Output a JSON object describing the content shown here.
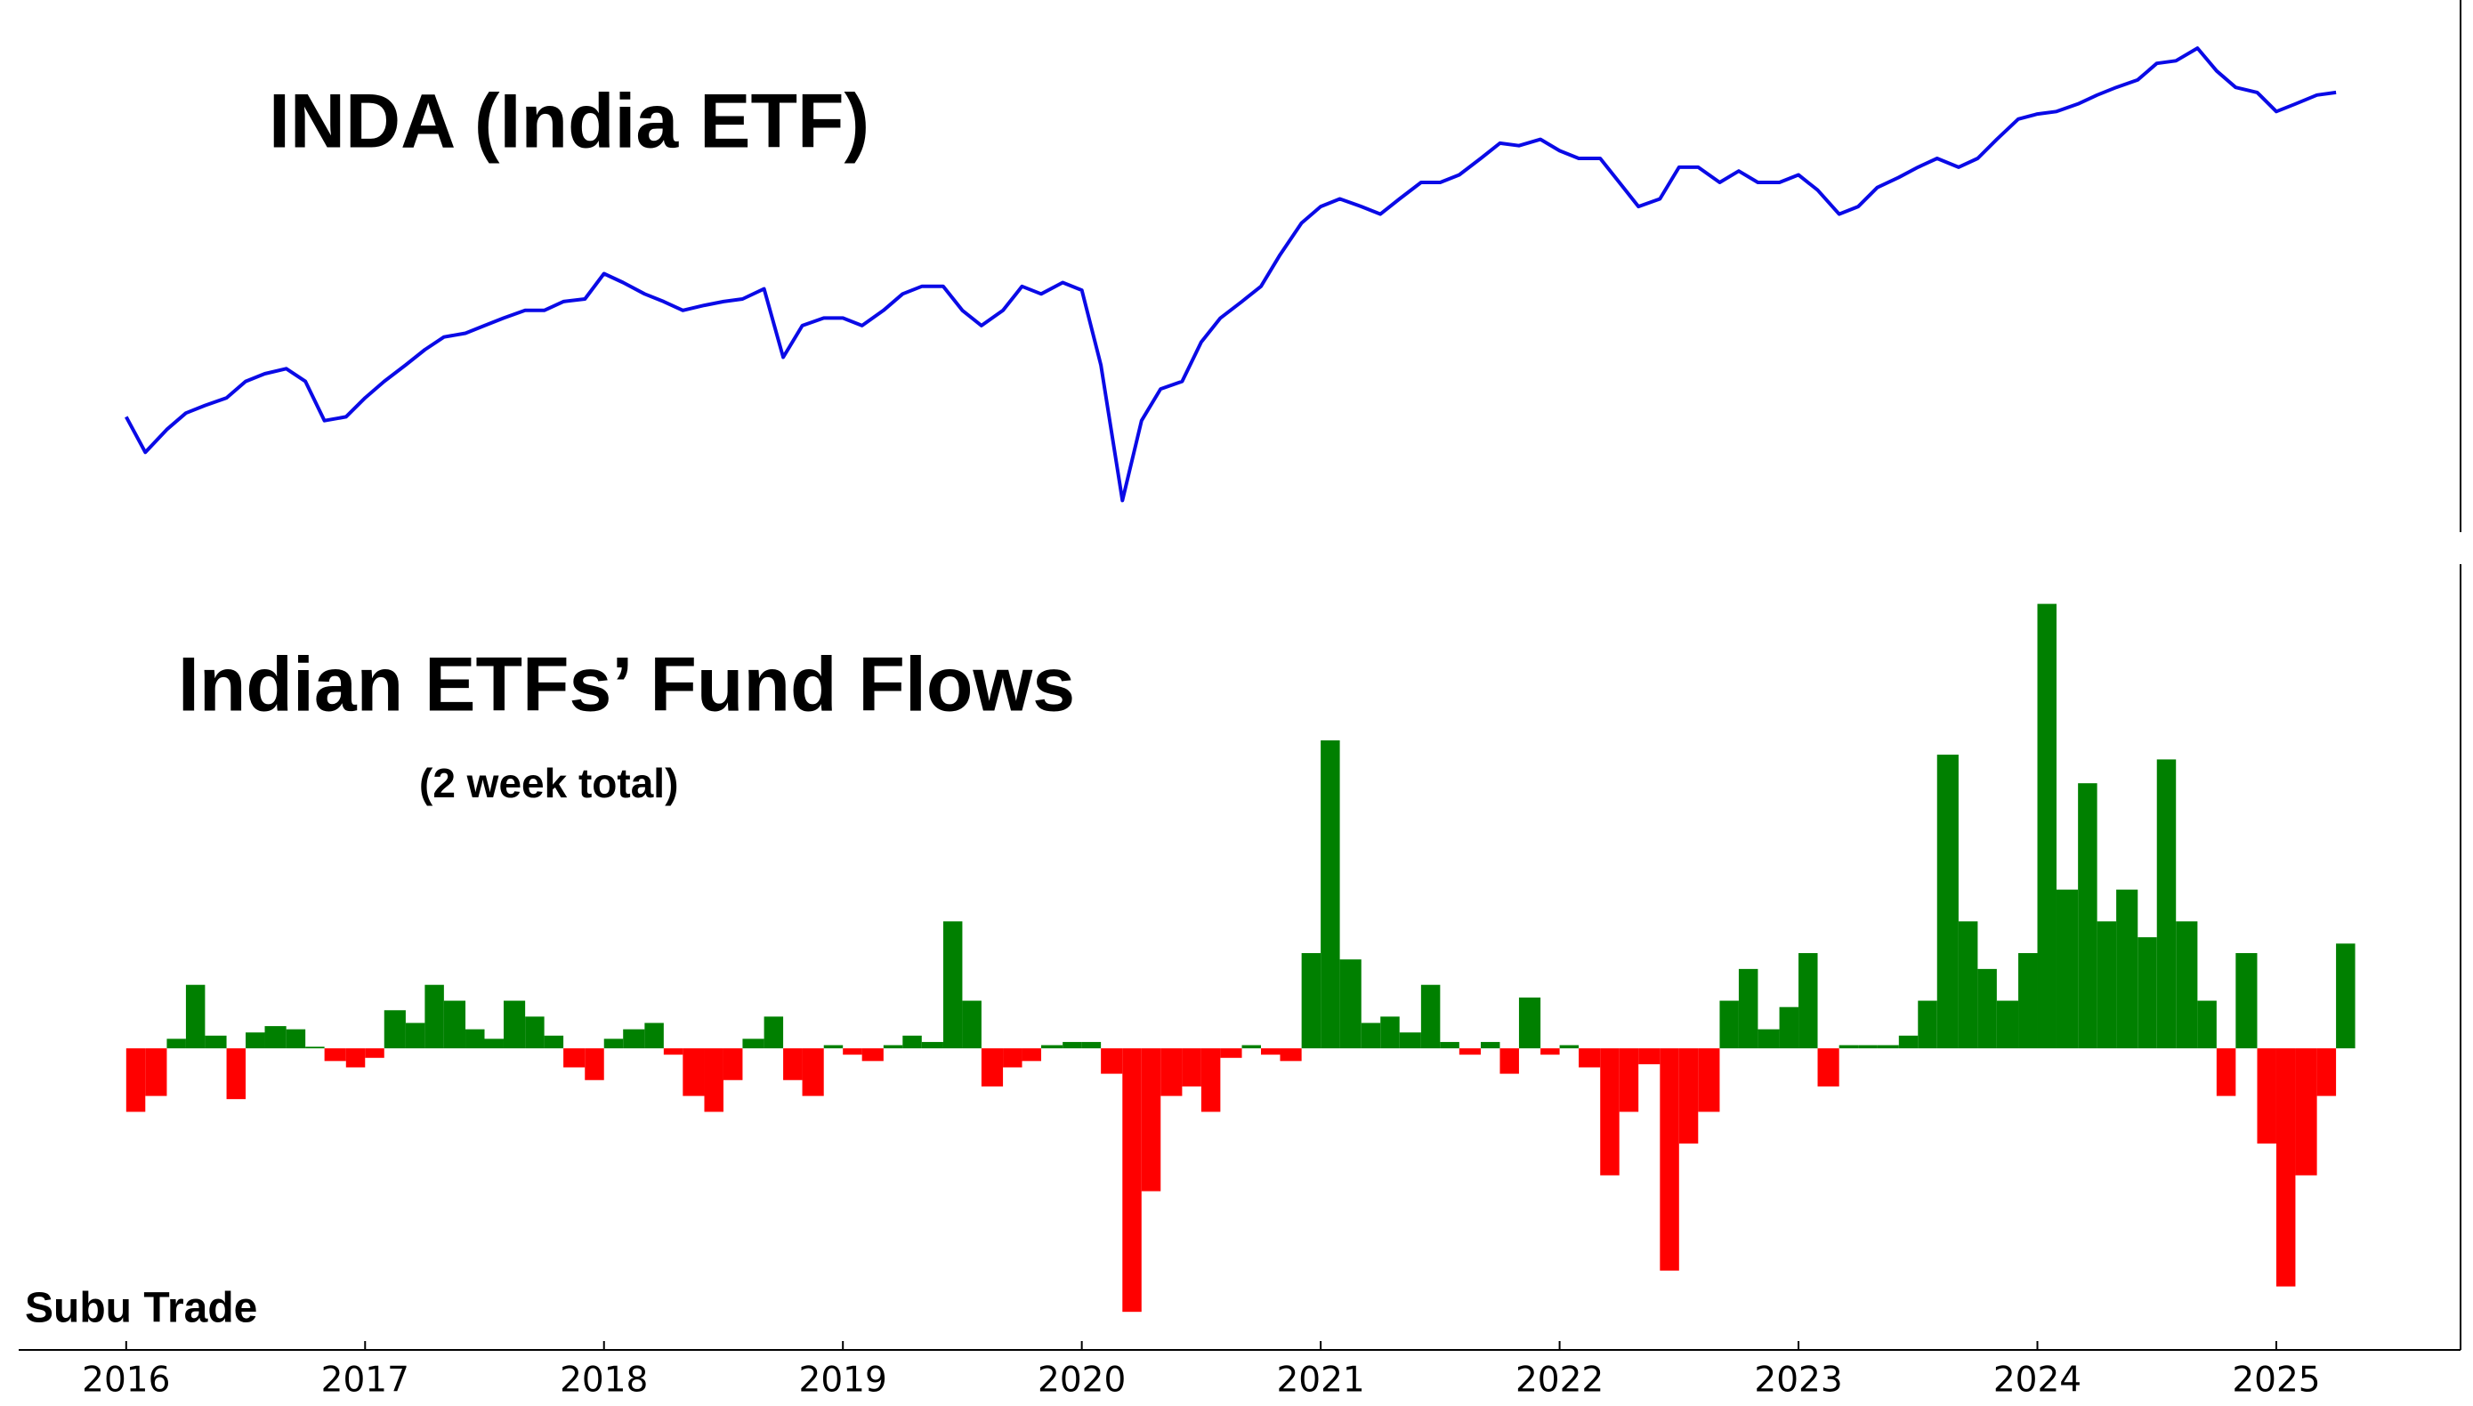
{
  "credit": "Subu Trade",
  "chart_data": [
    {
      "type": "line",
      "title": "INDA (India ETF)",
      "color": "#0a0ae6",
      "xlim": [
        2015.55,
        2025.76
      ],
      "ylim": [
        20.4,
        62.4
      ],
      "x": [
        2016.0,
        2016.08,
        2016.17,
        2016.25,
        2016.33,
        2016.42,
        2016.5,
        2016.58,
        2016.67,
        2016.75,
        2016.83,
        2016.92,
        2017.0,
        2017.08,
        2017.17,
        2017.25,
        2017.33,
        2017.42,
        2017.5,
        2017.58,
        2017.67,
        2017.75,
        2017.83,
        2017.92,
        2018.0,
        2018.08,
        2018.17,
        2018.25,
        2018.33,
        2018.42,
        2018.5,
        2018.58,
        2018.67,
        2018.75,
        2018.83,
        2018.92,
        2019.0,
        2019.08,
        2019.17,
        2019.25,
        2019.33,
        2019.42,
        2019.5,
        2019.58,
        2019.67,
        2019.75,
        2019.83,
        2019.92,
        2020.0,
        2020.08,
        2020.17,
        2020.25,
        2020.33,
        2020.42,
        2020.5,
        2020.58,
        2020.67,
        2020.75,
        2020.83,
        2020.92,
        2021.0,
        2021.08,
        2021.17,
        2021.25,
        2021.33,
        2021.42,
        2021.5,
        2021.58,
        2021.67,
        2021.75,
        2021.83,
        2021.92,
        2022.0,
        2022.08,
        2022.17,
        2022.25,
        2022.33,
        2022.42,
        2022.5,
        2022.58,
        2022.67,
        2022.75,
        2022.83,
        2022.92,
        2023.0,
        2023.08,
        2023.17,
        2023.25,
        2023.33,
        2023.42,
        2023.5,
        2023.58,
        2023.67,
        2023.75,
        2023.83,
        2023.92,
        2024.0,
        2024.08,
        2024.17,
        2024.25,
        2024.33,
        2024.42,
        2024.5,
        2024.58,
        2024.67,
        2024.75,
        2024.83,
        2024.92,
        2025.0,
        2025.08,
        2025.17,
        2025.25
      ],
      "values": [
        29.5,
        26.7,
        28.5,
        29.8,
        30.4,
        31.0,
        32.3,
        32.9,
        33.3,
        32.3,
        29.2,
        29.5,
        31.0,
        32.3,
        33.6,
        34.8,
        35.8,
        36.1,
        36.7,
        37.3,
        37.9,
        37.9,
        38.6,
        38.8,
        40.8,
        40.1,
        39.2,
        38.6,
        37.9,
        38.3,
        38.6,
        38.8,
        39.6,
        34.2,
        36.7,
        37.3,
        37.3,
        36.7,
        37.9,
        39.2,
        39.8,
        39.8,
        37.9,
        36.7,
        37.9,
        39.8,
        39.2,
        40.1,
        39.5,
        33.6,
        22.9,
        29.2,
        31.7,
        32.3,
        35.4,
        37.3,
        38.6,
        39.8,
        42.3,
        44.8,
        46.1,
        46.7,
        46.1,
        45.5,
        46.7,
        48.0,
        48.0,
        48.6,
        49.9,
        51.1,
        50.9,
        51.4,
        50.5,
        49.9,
        49.9,
        48.0,
        46.1,
        46.7,
        49.2,
        49.2,
        48.0,
        48.9,
        48.0,
        48.0,
        48.6,
        47.4,
        45.5,
        46.1,
        47.6,
        48.4,
        49.2,
        49.9,
        49.2,
        49.9,
        51.4,
        53.0,
        53.4,
        53.6,
        54.2,
        54.9,
        55.5,
        56.1,
        57.4,
        57.6,
        58.6,
        56.8,
        55.5,
        55.1,
        53.6,
        54.2,
        54.9,
        55.1
      ]
    },
    {
      "type": "bar",
      "title": "Indian ETFs’ Fund Flows",
      "subtitle": "(2 week total)",
      "color_positive": "#008000",
      "color_negative": "#ff0000",
      "xlim": [
        2015.55,
        2025.76
      ],
      "ylim": [
        -950,
        1525
      ],
      "xticks": [
        2016,
        2017,
        2018,
        2019,
        2020,
        2021,
        2022,
        2023,
        2024,
        2025
      ],
      "x": [
        2016.0,
        2016.08,
        2016.17,
        2016.25,
        2016.33,
        2016.42,
        2016.5,
        2016.58,
        2016.67,
        2016.75,
        2016.83,
        2016.92,
        2017.0,
        2017.08,
        2017.17,
        2017.25,
        2017.33,
        2017.42,
        2017.5,
        2017.58,
        2017.67,
        2017.75,
        2017.83,
        2017.92,
        2018.0,
        2018.08,
        2018.17,
        2018.25,
        2018.33,
        2018.42,
        2018.5,
        2018.58,
        2018.67,
        2018.75,
        2018.83,
        2018.92,
        2019.0,
        2019.08,
        2019.17,
        2019.25,
        2019.33,
        2019.42,
        2019.5,
        2019.58,
        2019.67,
        2019.75,
        2019.83,
        2019.92,
        2020.0,
        2020.08,
        2020.17,
        2020.25,
        2020.33,
        2020.42,
        2020.5,
        2020.58,
        2020.67,
        2020.75,
        2020.83,
        2020.92,
        2021.0,
        2021.08,
        2021.17,
        2021.25,
        2021.33,
        2021.42,
        2021.5,
        2021.58,
        2021.67,
        2021.75,
        2021.83,
        2021.92,
        2022.0,
        2022.08,
        2022.17,
        2022.25,
        2022.33,
        2022.42,
        2022.5,
        2022.58,
        2022.67,
        2022.75,
        2022.83,
        2022.92,
        2023.0,
        2023.08,
        2023.17,
        2023.25,
        2023.33,
        2023.42,
        2023.5,
        2023.58,
        2023.67,
        2023.75,
        2023.83,
        2023.92,
        2024.0,
        2024.08,
        2024.17,
        2024.25,
        2024.33,
        2024.42,
        2024.5,
        2024.58,
        2024.67,
        2024.75,
        2024.83,
        2024.92,
        2025.0,
        2025.08,
        2025.17,
        2025.25
      ],
      "values": [
        -200,
        -150,
        30,
        200,
        40,
        -160,
        50,
        70,
        60,
        5,
        -40,
        -60,
        -30,
        120,
        80,
        200,
        150,
        60,
        30,
        150,
        100,
        40,
        -60,
        -100,
        30,
        60,
        80,
        -20,
        -150,
        -200,
        -100,
        30,
        100,
        -100,
        -150,
        10,
        -20,
        -40,
        10,
        40,
        20,
        400,
        150,
        -120,
        -60,
        -40,
        10,
        20,
        20,
        -80,
        -830,
        -450,
        -150,
        -120,
        -200,
        -30,
        10,
        -20,
        -40,
        300,
        970,
        280,
        80,
        100,
        50,
        200,
        20,
        -20,
        20,
        -80,
        160,
        -20,
        10,
        -60,
        -400,
        -200,
        -50,
        -700,
        -300,
        -200,
        150,
        250,
        60,
        130,
        300,
        -120,
        10,
        10,
        10,
        40,
        150,
        925,
        400,
        250,
        150,
        300,
        1400,
        500,
        835,
        400,
        500,
        350,
        910,
        400,
        150,
        -150,
        300,
        -300,
        -750,
        -400,
        -150,
        330
      ]
    }
  ]
}
